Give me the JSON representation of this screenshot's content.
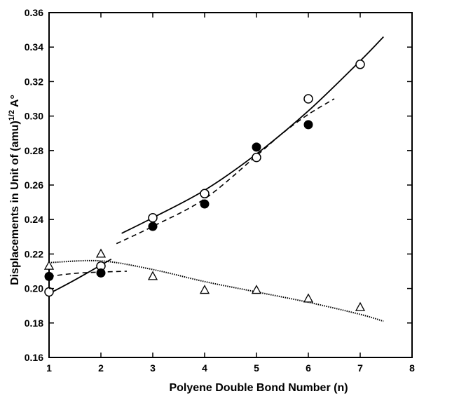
{
  "chart_data": {
    "type": "scatter",
    "title": "",
    "xlabel": "Polyene Double Bond Number (n)",
    "ylabel": "Displacements in Unit of (amu)^1/2 A°",
    "ylabel_parts": {
      "prefix": "Displacements in Unit of (amu)",
      "superscript": "1/2",
      "suffix": " A°"
    },
    "xlim": [
      1,
      8
    ],
    "ylim": [
      0.16,
      0.36
    ],
    "x_ticks": [
      1,
      2,
      3,
      4,
      5,
      6,
      7,
      8
    ],
    "y_ticks": [
      0.16,
      0.18,
      0.2,
      0.22,
      0.24,
      0.26,
      0.28,
      0.3,
      0.32,
      0.34,
      0.36
    ],
    "grid": false,
    "series": [
      {
        "marker": "open-circle",
        "x": [
          1,
          2,
          3,
          4,
          5,
          6,
          7
        ],
        "y": [
          0.198,
          0.213,
          0.241,
          0.255,
          0.276,
          0.31,
          0.33
        ]
      },
      {
        "marker": "filled-circle",
        "x": [
          1,
          2,
          3,
          4,
          5,
          6
        ],
        "y": [
          0.207,
          0.209,
          0.236,
          0.249,
          0.282,
          0.295
        ]
      },
      {
        "marker": "open-triangle",
        "x": [
          1,
          2,
          3,
          4,
          5,
          6,
          7
        ],
        "y": [
          0.213,
          0.22,
          0.207,
          0.199,
          0.199,
          0.194,
          0.189
        ]
      }
    ],
    "fit_lines": [
      {
        "style": "solid",
        "segments": [
          {
            "x": [
              1,
              1.5,
              2.2
            ],
            "y": [
              0.197,
              0.205,
              0.217
            ]
          },
          {
            "x": [
              2.4,
              3,
              4,
              5,
              6,
              7,
              7.45
            ],
            "y": [
              0.232,
              0.241,
              0.257,
              0.278,
              0.303,
              0.332,
              0.346
            ]
          }
        ]
      },
      {
        "style": "dashed",
        "segments": [
          {
            "x": [
              1,
              1.6,
              2.5
            ],
            "y": [
              0.207,
              0.209,
              0.21
            ]
          },
          {
            "x": [
              2.3,
              3,
              4,
              5,
              5.5,
              6,
              6.5
            ],
            "y": [
              0.226,
              0.236,
              0.252,
              0.277,
              0.29,
              0.301,
              0.31
            ]
          }
        ]
      },
      {
        "style": "dotted",
        "segments": [
          {
            "x": [
              1,
              2,
              3,
              4,
              5,
              6,
              7,
              7.45
            ],
            "y": [
              0.215,
              0.216,
              0.211,
              0.204,
              0.198,
              0.192,
              0.185,
              0.181
            ]
          }
        ]
      }
    ]
  }
}
